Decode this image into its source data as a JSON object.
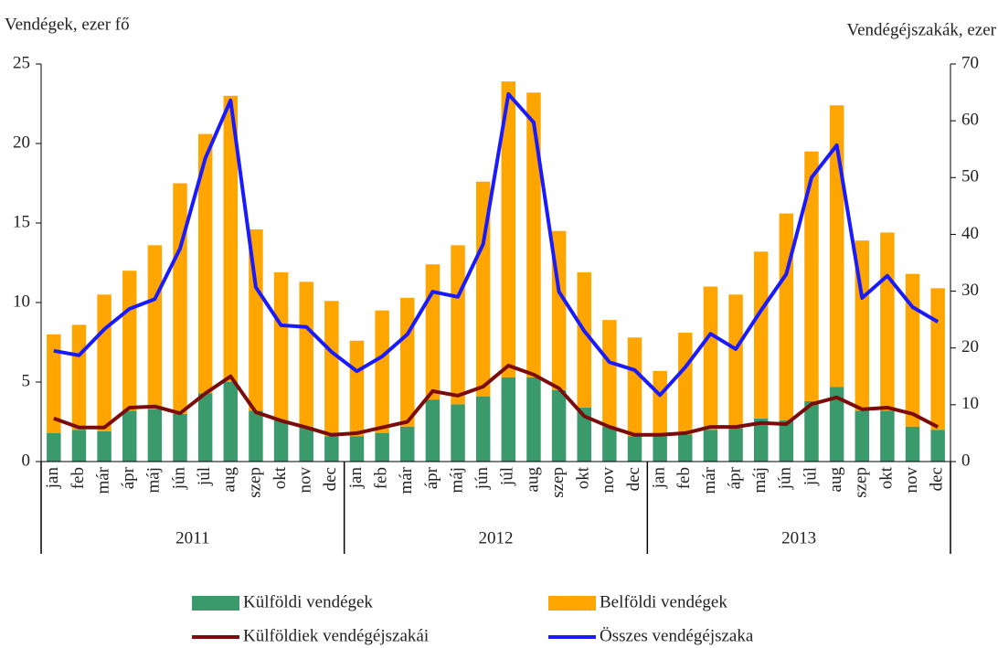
{
  "chart_data": {
    "type": "bar",
    "stacked": true,
    "y_label": "Vendégek, ezer fő",
    "y2_label": "Vendégéjszakák, ezer",
    "categories": [
      "jan",
      "feb",
      "már",
      "ápr",
      "máj",
      "jún",
      "júl",
      "aug",
      "szep",
      "okt",
      "nov",
      "dec",
      "jan",
      "feb",
      "már",
      "ápr",
      "máj",
      "jún",
      "júl",
      "aug",
      "szep",
      "okt",
      "nov",
      "dec",
      "jan",
      "feb",
      "már",
      "ápr",
      "máj",
      "jún",
      "júl",
      "aug",
      "szep",
      "okt",
      "nov",
      "dec"
    ],
    "groups": [
      "2011",
      "2012",
      "2013"
    ],
    "ylim": [
      0,
      25
    ],
    "yticks": [
      0,
      5,
      10,
      15,
      20,
      25
    ],
    "y2lim": [
      0,
      70
    ],
    "y2ticks": [
      0,
      10,
      20,
      30,
      40,
      50,
      60,
      70
    ],
    "series": [
      {
        "name": "Külföldi vendégek",
        "type": "bar",
        "color": "#3a9a6c",
        "values": [
          1.8,
          2.0,
          1.9,
          3.2,
          3.3,
          3.0,
          4.3,
          5.0,
          3.2,
          2.6,
          2.2,
          1.6,
          1.6,
          1.8,
          2.2,
          3.9,
          3.6,
          4.1,
          5.3,
          5.3,
          4.5,
          3.4,
          2.2,
          1.6,
          1.7,
          1.7,
          2.0,
          2.1,
          2.7,
          2.6,
          3.8,
          4.7,
          3.2,
          3.2,
          2.2,
          2.0
        ]
      },
      {
        "name": "Belföldi vendégek",
        "type": "bar",
        "color": "#ffa500",
        "values": [
          6.2,
          6.6,
          8.6,
          8.8,
          10.3,
          14.5,
          16.3,
          18.0,
          11.4,
          9.3,
          9.1,
          8.5,
          6.0,
          7.7,
          8.1,
          8.5,
          10.0,
          13.5,
          18.6,
          17.9,
          10.0,
          8.5,
          6.7,
          6.2,
          4.0,
          6.4,
          9.0,
          8.4,
          10.5,
          13.0,
          15.7,
          17.7,
          10.7,
          11.2,
          9.6,
          8.9
        ]
      },
      {
        "name": "Külföldiek vendégéjszakái",
        "type": "line",
        "axis": "y2",
        "color": "#7b0c0c",
        "values": [
          7.6,
          6.0,
          6.0,
          9.5,
          9.7,
          8.5,
          12.0,
          15.0,
          8.7,
          7.2,
          6.0,
          4.7,
          5.0,
          6.0,
          7.0,
          12.4,
          11.6,
          13.2,
          16.9,
          15.3,
          12.9,
          8.0,
          6.1,
          4.7,
          4.7,
          5.0,
          6.1,
          6.1,
          6.8,
          6.6,
          10.1,
          11.3,
          9.2,
          9.5,
          8.4,
          6.1
        ]
      },
      {
        "name": "Összes vendégéjszaka",
        "type": "line",
        "axis": "y2",
        "color": "#1a1aff",
        "values": [
          19.5,
          18.7,
          23.3,
          26.9,
          28.6,
          37.5,
          53.4,
          63.6,
          30.7,
          24.0,
          23.7,
          19.3,
          15.9,
          18.5,
          22.4,
          29.9,
          29.0,
          38.3,
          64.7,
          59.7,
          29.9,
          23.0,
          17.5,
          16.1,
          11.7,
          16.6,
          22.5,
          19.8,
          26.6,
          33.0,
          50.0,
          55.7,
          28.8,
          32.7,
          27.2,
          24.6
        ]
      }
    ]
  }
}
